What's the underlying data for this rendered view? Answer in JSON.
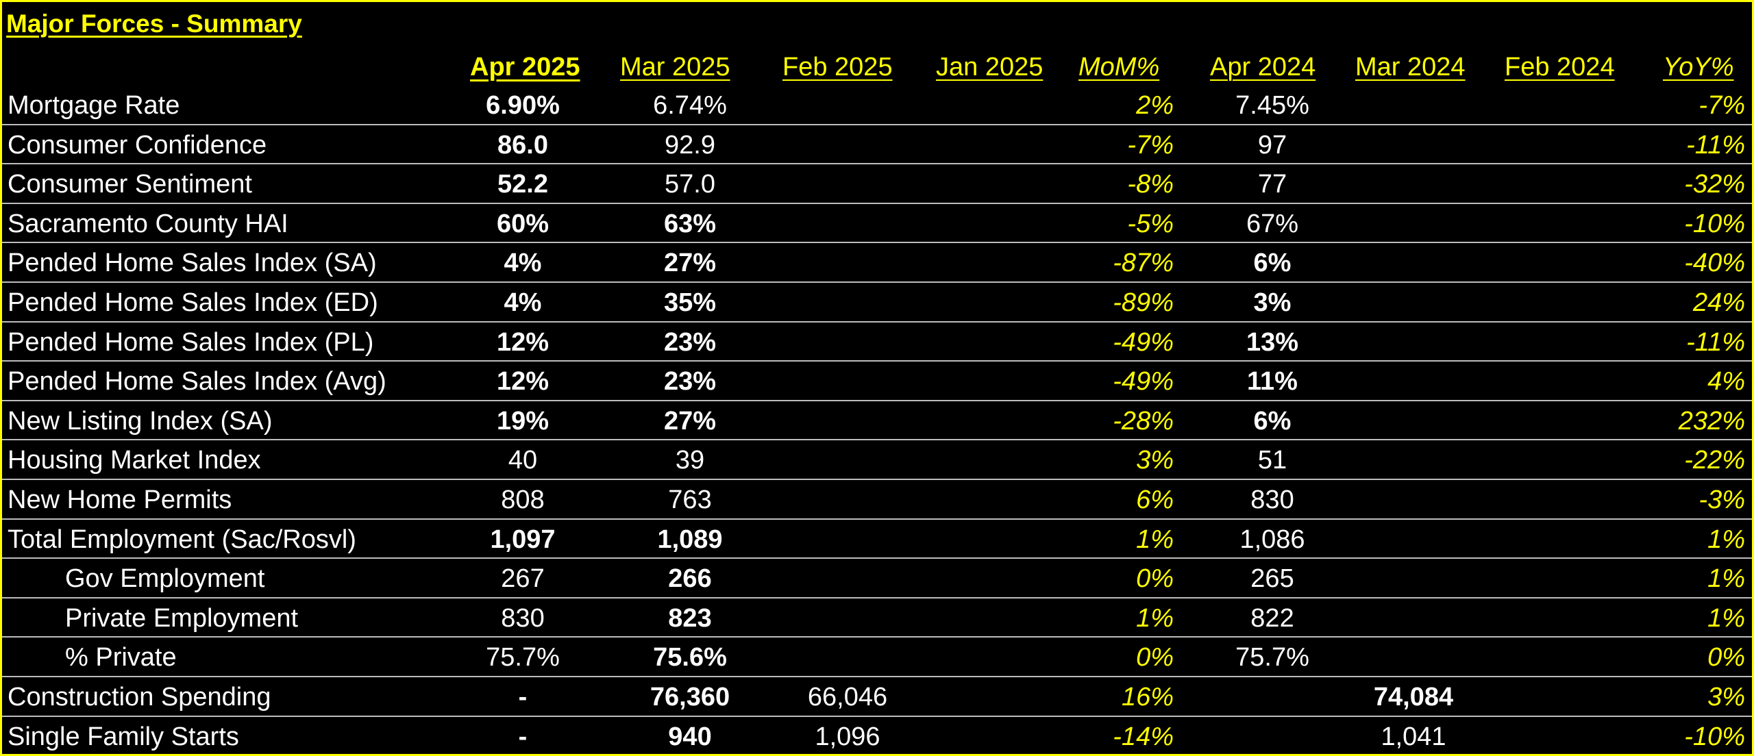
{
  "title": "Major Forces - Summary",
  "headers": [
    "Apr 2025",
    "Mar 2025",
    "Feb 2025",
    "Jan 2025",
    "MoM%",
    "Apr 2024",
    "Mar 2024",
    "Feb 2024",
    "YoY%"
  ],
  "rows": [
    {
      "label": "Mortgage Rate",
      "indent": false,
      "apr25": "6.90%",
      "apr25_bold": true,
      "mar25": "6.74%",
      "mar25_bold": false,
      "feb25": "",
      "mom": "2%",
      "apr24": "7.45%",
      "apr24_bold": false,
      "mar24": "",
      "yoy": "-7%"
    },
    {
      "label": "Consumer Confidence",
      "indent": false,
      "apr25": "86.0",
      "apr25_bold": true,
      "mar25": "92.9",
      "mar25_bold": false,
      "feb25": "",
      "mom": "-7%",
      "apr24": "97",
      "apr24_bold": false,
      "mar24": "",
      "yoy": "-11%"
    },
    {
      "label": "Consumer Sentiment",
      "indent": false,
      "apr25": "52.2",
      "apr25_bold": true,
      "mar25": "57.0",
      "mar25_bold": false,
      "feb25": "",
      "mom": "-8%",
      "apr24": "77",
      "apr24_bold": false,
      "mar24": "",
      "yoy": "-32%"
    },
    {
      "label": "Sacramento County HAI",
      "indent": false,
      "apr25": "60%",
      "apr25_bold": true,
      "mar25": "63%",
      "mar25_bold": true,
      "feb25": "",
      "mom": "-5%",
      "apr24": "67%",
      "apr24_bold": false,
      "mar24": "",
      "yoy": "-10%"
    },
    {
      "label": "Pended Home Sales Index (SA)",
      "indent": false,
      "apr25": "4%",
      "apr25_bold": true,
      "mar25": "27%",
      "mar25_bold": true,
      "feb25": "",
      "mom": "-87%",
      "apr24": "6%",
      "apr24_bold": true,
      "mar24": "",
      "yoy": "-40%"
    },
    {
      "label": "Pended Home Sales Index (ED)",
      "indent": false,
      "apr25": "4%",
      "apr25_bold": true,
      "mar25": "35%",
      "mar25_bold": true,
      "feb25": "",
      "mom": "-89%",
      "apr24": "3%",
      "apr24_bold": true,
      "mar24": "",
      "yoy": "24%"
    },
    {
      "label": "Pended Home Sales Index (PL)",
      "indent": false,
      "apr25": "12%",
      "apr25_bold": true,
      "mar25": "23%",
      "mar25_bold": true,
      "feb25": "",
      "mom": "-49%",
      "apr24": "13%",
      "apr24_bold": true,
      "mar24": "",
      "yoy": "-11%"
    },
    {
      "label": "Pended Home Sales Index (Avg)",
      "indent": false,
      "apr25": "12%",
      "apr25_bold": true,
      "mar25": "23%",
      "mar25_bold": true,
      "feb25": "",
      "mom": "-49%",
      "apr24": "11%",
      "apr24_bold": true,
      "mar24": "",
      "yoy": "4%"
    },
    {
      "label": "New Listing Index (SA)",
      "indent": false,
      "apr25": "19%",
      "apr25_bold": true,
      "mar25": "27%",
      "mar25_bold": true,
      "feb25": "",
      "mom": "-28%",
      "apr24": "6%",
      "apr24_bold": true,
      "mar24": "",
      "yoy": "232%"
    },
    {
      "label": "Housing Market Index",
      "indent": false,
      "apr25": "40",
      "apr25_bold": false,
      "mar25": "39",
      "mar25_bold": false,
      "feb25": "",
      "mom": "3%",
      "apr24": "51",
      "apr24_bold": false,
      "mar24": "",
      "yoy": "-22%"
    },
    {
      "label": "New Home Permits",
      "indent": false,
      "apr25": "808",
      "apr25_bold": false,
      "mar25": "763",
      "mar25_bold": false,
      "feb25": "",
      "mom": "6%",
      "apr24": "830",
      "apr24_bold": false,
      "mar24": "",
      "yoy": "-3%"
    },
    {
      "label": "Total Employment (Sac/Rosvl)",
      "indent": false,
      "apr25": "1,097",
      "apr25_bold": true,
      "mar25": "1,089",
      "mar25_bold": true,
      "feb25": "",
      "mom": "1%",
      "apr24": "1,086",
      "apr24_bold": false,
      "mar24": "",
      "yoy": "1%"
    },
    {
      "label": "Gov Employment",
      "indent": true,
      "apr25": "267",
      "apr25_bold": false,
      "mar25": "266",
      "mar25_bold": true,
      "feb25": "",
      "mom": "0%",
      "apr24": "265",
      "apr24_bold": false,
      "mar24": "",
      "yoy": "1%"
    },
    {
      "label": "Private Employment",
      "indent": true,
      "apr25": "830",
      "apr25_bold": false,
      "mar25": "823",
      "mar25_bold": true,
      "feb25": "",
      "mom": "1%",
      "apr24": "822",
      "apr24_bold": false,
      "mar24": "",
      "yoy": "1%"
    },
    {
      "label": "% Private",
      "indent": true,
      "apr25": "75.7%",
      "apr25_bold": false,
      "mar25": "75.6%",
      "mar25_bold": true,
      "feb25": "",
      "mom": "0%",
      "apr24": "75.7%",
      "apr24_bold": false,
      "mar24": "",
      "yoy": "0%"
    },
    {
      "label": "Construction Spending",
      "indent": false,
      "apr25": "-",
      "apr25_bold": true,
      "mar25": "76,360",
      "mar25_bold": true,
      "feb25": "66,046",
      "mom": "16%",
      "apr24": "",
      "apr24_bold": false,
      "mar24": "74,084",
      "mar24_bold": true,
      "yoy": "3%"
    },
    {
      "label": "Single Family Starts",
      "indent": false,
      "apr25": "-",
      "apr25_bold": true,
      "mar25": "940",
      "mar25_bold": true,
      "feb25": "1,096",
      "mom": "-14%",
      "apr24": "",
      "apr24_bold": false,
      "mar24": "1,041",
      "mar24_bold": false,
      "yoy": "-10%"
    }
  ]
}
